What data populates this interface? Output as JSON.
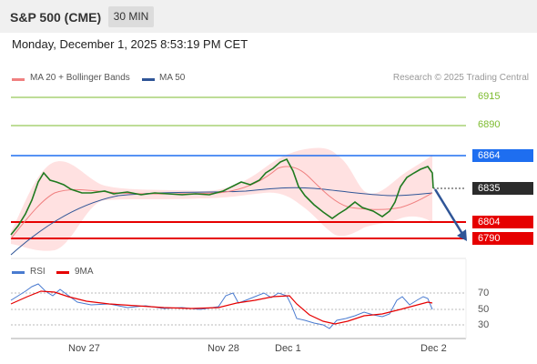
{
  "header": {
    "instrument": "S&P 500 (CME)",
    "timeframe": "30 MIN"
  },
  "datetime": "Monday, December 1, 2025 8:53:19 PM CET",
  "legend": {
    "ma20": {
      "label": "MA 20 + Bollinger Bands",
      "color": "#f08080"
    },
    "ma50": {
      "label": "MA 50",
      "color": "#2f5597"
    }
  },
  "credit": "Research © 2025 Trading Central",
  "levels": [
    {
      "value": "6915",
      "color": "#7dbb2f",
      "type": "resistance"
    },
    {
      "value": "6890",
      "color": "#7dbb2f",
      "type": "resistance"
    },
    {
      "value": "6864",
      "color": "#1e6ef0",
      "type": "pivot"
    },
    {
      "value": "6835",
      "color": "#2b2b2b",
      "type": "last-price"
    },
    {
      "value": "6804",
      "color": "#e60000",
      "type": "support"
    },
    {
      "value": "6790",
      "color": "#e60000",
      "type": "support"
    }
  ],
  "rsi": {
    "legend": {
      "rsi": "RSI",
      "ma": "9MA",
      "rsi_color": "#4a7bd0",
      "ma_color": "#e60000"
    },
    "ticks": [
      "70",
      "50",
      "30"
    ]
  },
  "x_axis": {
    "labels": [
      "Nov 27",
      "Nov 28",
      "Dec 1",
      "Dec 2"
    ]
  },
  "chart_data": {
    "type": "candlestick",
    "y_axis_levels": [
      6915,
      6890,
      6864,
      6835,
      6804,
      6790
    ],
    "last_price": 6835,
    "forecast": "down toward 6790",
    "rsi_levels": [
      70,
      50,
      30
    ]
  }
}
